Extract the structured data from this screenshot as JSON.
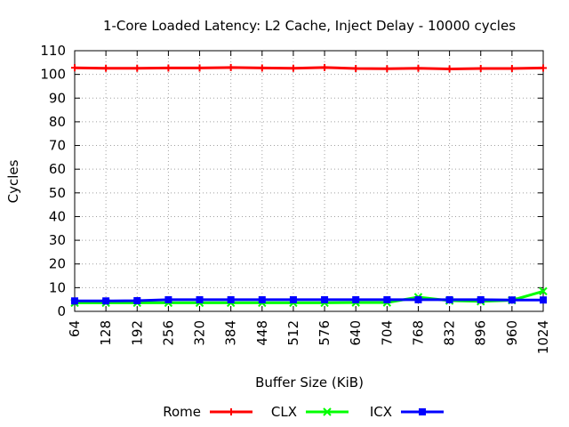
{
  "chart_data": {
    "type": "line",
    "title": "1-Core Loaded Latency: L2 Cache, Inject Delay - 10000 cycles",
    "xlabel": "Buffer Size (KiB)",
    "ylabel": "Cycles",
    "ylim": [
      0,
      110
    ],
    "yticks": [
      "0",
      "10",
      "20",
      "30",
      "40",
      "50",
      "60",
      "70",
      "80",
      "90",
      "100",
      "110"
    ],
    "categories": [
      "64",
      "128",
      "192",
      "256",
      "320",
      "384",
      "448",
      "512",
      "576",
      "640",
      "704",
      "768",
      "832",
      "896",
      "960",
      "1024"
    ],
    "grid": true,
    "legend_position": "bottom",
    "series": [
      {
        "name": "Rome",
        "color": "#ff0000",
        "marker": "plus",
        "values": [
          102.8,
          102.6,
          102.6,
          102.7,
          102.7,
          102.9,
          102.7,
          102.6,
          102.9,
          102.5,
          102.4,
          102.6,
          102.3,
          102.5,
          102.5,
          102.7
        ]
      },
      {
        "name": "CLX",
        "color": "#00ff00",
        "marker": "cross",
        "values": [
          3.6,
          3.6,
          3.6,
          3.6,
          3.6,
          3.6,
          3.6,
          3.6,
          3.6,
          3.7,
          3.7,
          6.0,
          4.5,
          4.2,
          4.7,
          8.5
        ]
      },
      {
        "name": "ICX",
        "color": "#0000ff",
        "marker": "square",
        "values": [
          4.4,
          4.4,
          4.5,
          4.9,
          4.9,
          4.9,
          4.9,
          4.9,
          4.9,
          4.9,
          4.9,
          4.9,
          4.9,
          4.9,
          4.8,
          4.8
        ]
      }
    ]
  }
}
